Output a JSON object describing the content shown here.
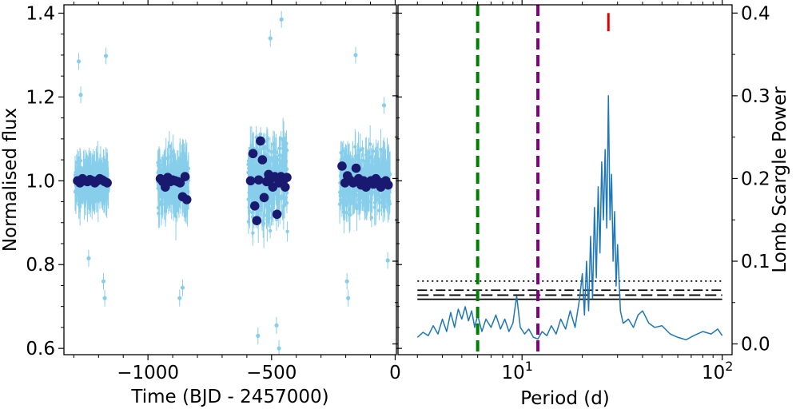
{
  "chart_data": [
    {
      "type": "scatter",
      "panel": "light-curve",
      "xlabel": "Time (BJD - 2457000)",
      "ylabel": "Normalised flux",
      "xlim": [
        -1340,
        5
      ],
      "ylim": [
        0.585,
        1.42
      ],
      "xticks": [
        -1000,
        -500,
        0
      ],
      "xtick_labels": [
        "−1000",
        "−500",
        "0"
      ],
      "yticks": [
        0.6,
        0.8,
        1.0,
        1.2,
        1.4
      ],
      "ytick_labels": [
        "0.6",
        "0.8",
        "1.0",
        "1.2",
        "1.4"
      ],
      "colors": {
        "raw": "#87ceeb",
        "binned": "#191970"
      },
      "segments": [
        {
          "name": "season-1",
          "t_start": -1295,
          "t_end": -1160,
          "flux_spread": 0.07
        },
        {
          "name": "season-2",
          "t_start": -960,
          "t_end": -835,
          "flux_spread": 0.1
        },
        {
          "name": "season-3",
          "t_start": -595,
          "t_end": -435,
          "flux_spread": 0.16
        },
        {
          "name": "season-4",
          "t_start": -225,
          "t_end": -20,
          "flux_spread": 0.11
        }
      ],
      "outliers": [
        {
          "x": -1280,
          "y": 1.285
        },
        {
          "x": -1272,
          "y": 1.205
        },
        {
          "x": -1170,
          "y": 1.298
        },
        {
          "x": -1240,
          "y": 0.815
        },
        {
          "x": -1175,
          "y": 0.72
        },
        {
          "x": -1180,
          "y": 0.76
        },
        {
          "x": -872,
          "y": 0.72
        },
        {
          "x": -860,
          "y": 0.745
        },
        {
          "x": -505,
          "y": 1.34
        },
        {
          "x": -460,
          "y": 1.385
        },
        {
          "x": -480,
          "y": 0.655
        },
        {
          "x": -555,
          "y": 0.63
        },
        {
          "x": -470,
          "y": 0.6
        },
        {
          "x": -190,
          "y": 0.72
        },
        {
          "x": -195,
          "y": 0.76
        },
        {
          "x": -160,
          "y": 1.3
        },
        {
          "x": -45,
          "y": 1.18
        },
        {
          "x": -30,
          "y": 0.81
        }
      ],
      "binned": [
        {
          "x": -1285,
          "y": 1.0
        },
        {
          "x": -1275,
          "y": 0.995
        },
        {
          "x": -1265,
          "y": 1.005
        },
        {
          "x": -1255,
          "y": 1.0
        },
        {
          "x": -1245,
          "y": 0.998
        },
        {
          "x": -1235,
          "y": 1.003
        },
        {
          "x": -1225,
          "y": 1.0
        },
        {
          "x": -1215,
          "y": 0.995
        },
        {
          "x": -1205,
          "y": 1.0
        },
        {
          "x": -1195,
          "y": 1.005
        },
        {
          "x": -1185,
          "y": 1.002
        },
        {
          "x": -1175,
          "y": 0.998
        },
        {
          "x": -1165,
          "y": 0.995
        },
        {
          "x": -950,
          "y": 1.005
        },
        {
          "x": -940,
          "y": 0.998
        },
        {
          "x": -930,
          "y": 0.985
        },
        {
          "x": -920,
          "y": 1.008
        },
        {
          "x": -910,
          "y": 0.998
        },
        {
          "x": -900,
          "y": 1.002
        },
        {
          "x": -890,
          "y": 1.0
        },
        {
          "x": -880,
          "y": 0.998
        },
        {
          "x": -870,
          "y": 0.995
        },
        {
          "x": -860,
          "y": 0.962
        },
        {
          "x": -850,
          "y": 1.01
        },
        {
          "x": -843,
          "y": 0.955
        },
        {
          "x": -585,
          "y": 1.0
        },
        {
          "x": -575,
          "y": 1.065
        },
        {
          "x": -568,
          "y": 0.94
        },
        {
          "x": -560,
          "y": 0.905
        },
        {
          "x": -552,
          "y": 1.002
        },
        {
          "x": -545,
          "y": 1.095
        },
        {
          "x": -537,
          "y": 1.05
        },
        {
          "x": -530,
          "y": 0.96
        },
        {
          "x": -520,
          "y": 0.998
        },
        {
          "x": -512,
          "y": 1.015
        },
        {
          "x": -503,
          "y": 1.005
        },
        {
          "x": -495,
          "y": 0.985
        },
        {
          "x": -487,
          "y": 1.01
        },
        {
          "x": -478,
          "y": 0.92
        },
        {
          "x": -470,
          "y": 0.995
        },
        {
          "x": -462,
          "y": 1.01
        },
        {
          "x": -453,
          "y": 1.0
        },
        {
          "x": -445,
          "y": 0.985
        },
        {
          "x": -438,
          "y": 1.008
        },
        {
          "x": -215,
          "y": 1.035
        },
        {
          "x": -203,
          "y": 0.995
        },
        {
          "x": -193,
          "y": 1.012
        },
        {
          "x": -183,
          "y": 1.002
        },
        {
          "x": -170,
          "y": 0.995
        },
        {
          "x": -158,
          "y": 1.03
        },
        {
          "x": -148,
          "y": 1.005
        },
        {
          "x": -138,
          "y": 0.99
        },
        {
          "x": -128,
          "y": 1.0
        },
        {
          "x": -118,
          "y": 0.985
        },
        {
          "x": -108,
          "y": 0.995
        },
        {
          "x": -98,
          "y": 1.0
        },
        {
          "x": -88,
          "y": 0.992
        },
        {
          "x": -78,
          "y": 1.005
        },
        {
          "x": -68,
          "y": 0.998
        },
        {
          "x": -58,
          "y": 0.985
        },
        {
          "x": -48,
          "y": 0.995
        },
        {
          "x": -38,
          "y": 1.0
        },
        {
          "x": -28,
          "y": 0.99
        }
      ]
    },
    {
      "type": "line",
      "panel": "periodogram",
      "xlabel": "Period (d)",
      "ylabel": "Lomb Scargle Power",
      "xscale": "log",
      "xlim": [
        2.4,
        112
      ],
      "ylim": [
        -0.013,
        0.41
      ],
      "xticks": [
        10,
        100
      ],
      "xtick_labels": [
        {
          "base": "10",
          "exp": "1"
        },
        {
          "base": "10",
          "exp": "2"
        }
      ],
      "yticks": [
        0.0,
        0.1,
        0.2,
        0.3,
        0.4
      ],
      "ytick_labels": [
        "0.0",
        "0.1",
        "0.2",
        "0.3",
        "0.4"
      ],
      "line_color": "#1f77b4",
      "periodogram": [
        {
          "x": 3.0,
          "y": 0.008
        },
        {
          "x": 3.2,
          "y": 0.014
        },
        {
          "x": 3.4,
          "y": 0.01
        },
        {
          "x": 3.6,
          "y": 0.022
        },
        {
          "x": 3.8,
          "y": 0.012
        },
        {
          "x": 4.0,
          "y": 0.03
        },
        {
          "x": 4.2,
          "y": 0.015
        },
        {
          "x": 4.4,
          "y": 0.038
        },
        {
          "x": 4.6,
          "y": 0.02
        },
        {
          "x": 4.8,
          "y": 0.042
        },
        {
          "x": 5.0,
          "y": 0.03
        },
        {
          "x": 5.2,
          "y": 0.045
        },
        {
          "x": 5.4,
          "y": 0.028
        },
        {
          "x": 5.6,
          "y": 0.04
        },
        {
          "x": 5.8,
          "y": 0.02
        },
        {
          "x": 6.0,
          "y": 0.035
        },
        {
          "x": 6.3,
          "y": 0.015
        },
        {
          "x": 6.6,
          "y": 0.03
        },
        {
          "x": 7.0,
          "y": 0.02
        },
        {
          "x": 7.4,
          "y": 0.035
        },
        {
          "x": 7.8,
          "y": 0.018
        },
        {
          "x": 8.2,
          "y": 0.03
        },
        {
          "x": 8.6,
          "y": 0.015
        },
        {
          "x": 9.0,
          "y": 0.025
        },
        {
          "x": 9.4,
          "y": 0.058
        },
        {
          "x": 9.8,
          "y": 0.02
        },
        {
          "x": 10.3,
          "y": 0.012
        },
        {
          "x": 10.8,
          "y": 0.018
        },
        {
          "x": 11.4,
          "y": 0.008
        },
        {
          "x": 12.0,
          "y": 0.006
        },
        {
          "x": 12.6,
          "y": 0.015
        },
        {
          "x": 13.3,
          "y": 0.01
        },
        {
          "x": 14.0,
          "y": 0.022
        },
        {
          "x": 14.8,
          "y": 0.012
        },
        {
          "x": 15.6,
          "y": 0.03
        },
        {
          "x": 16.5,
          "y": 0.018
        },
        {
          "x": 17.4,
          "y": 0.04
        },
        {
          "x": 18.4,
          "y": 0.02
        },
        {
          "x": 19.4,
          "y": 0.055
        },
        {
          "x": 20.0,
          "y": 0.085
        },
        {
          "x": 20.5,
          "y": 0.035
        },
        {
          "x": 21.0,
          "y": 0.1
        },
        {
          "x": 21.5,
          "y": 0.04
        },
        {
          "x": 22.0,
          "y": 0.13
        },
        {
          "x": 22.5,
          "y": 0.055
        },
        {
          "x": 23.0,
          "y": 0.165
        },
        {
          "x": 23.5,
          "y": 0.08
        },
        {
          "x": 24.0,
          "y": 0.19
        },
        {
          "x": 24.5,
          "y": 0.11
        },
        {
          "x": 25.0,
          "y": 0.22
        },
        {
          "x": 25.5,
          "y": 0.15
        },
        {
          "x": 26.0,
          "y": 0.235
        },
        {
          "x": 26.5,
          "y": 0.14
        },
        {
          "x": 27.0,
          "y": 0.3
        },
        {
          "x": 27.5,
          "y": 0.15
        },
        {
          "x": 28.0,
          "y": 0.205
        },
        {
          "x": 28.5,
          "y": 0.1
        },
        {
          "x": 29.0,
          "y": 0.16
        },
        {
          "x": 29.5,
          "y": 0.07
        },
        {
          "x": 30.0,
          "y": 0.12
        },
        {
          "x": 31.0,
          "y": 0.04
        },
        {
          "x": 32.0,
          "y": 0.025
        },
        {
          "x": 34.0,
          "y": 0.03
        },
        {
          "x": 36.0,
          "y": 0.02
        },
        {
          "x": 38.0,
          "y": 0.035
        },
        {
          "x": 40.0,
          "y": 0.04
        },
        {
          "x": 43.0,
          "y": 0.025
        },
        {
          "x": 46.0,
          "y": 0.02
        },
        {
          "x": 50.0,
          "y": 0.022
        },
        {
          "x": 55.0,
          "y": 0.012
        },
        {
          "x": 60.0,
          "y": 0.008
        },
        {
          "x": 66.0,
          "y": 0.005
        },
        {
          "x": 72.0,
          "y": 0.01
        },
        {
          "x": 80.0,
          "y": 0.015
        },
        {
          "x": 88.0,
          "y": 0.012
        },
        {
          "x": 95.0,
          "y": 0.018
        },
        {
          "x": 100.0,
          "y": 0.01
        }
      ],
      "fap_levels": [
        {
          "name": "dotted",
          "y": 0.076
        },
        {
          "name": "dash-dot",
          "y": 0.065
        },
        {
          "name": "dashed",
          "y": 0.059
        },
        {
          "name": "solid",
          "y": 0.054
        }
      ],
      "vertical_lines": [
        {
          "name": "green",
          "x": 6.0,
          "color": "#008000"
        },
        {
          "name": "purple",
          "x": 12.0,
          "color": "#800080"
        }
      ],
      "marker": {
        "x": 27.0,
        "y_low": 0.378,
        "y_high": 0.4,
        "color": "#e00000"
      }
    }
  ]
}
